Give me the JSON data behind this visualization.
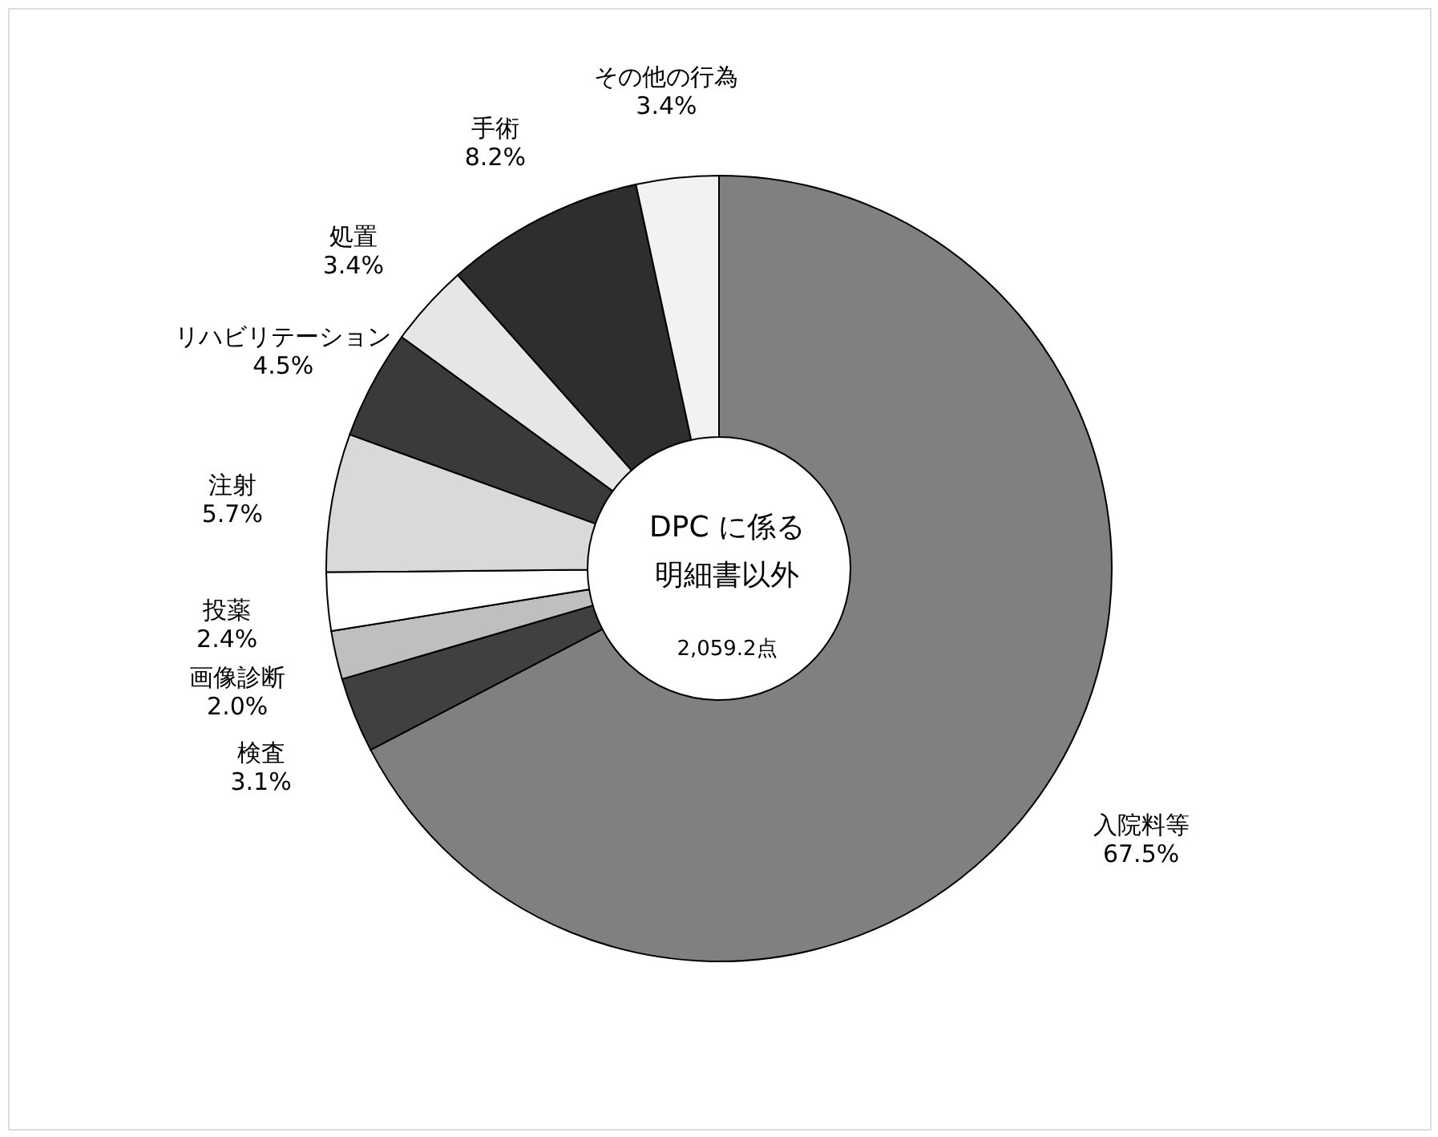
{
  "chart_data": {
    "type": "donut",
    "categories": [
      "入院料等",
      "検査",
      "画像診断",
      "投薬",
      "注射",
      "リハビリテーション",
      "処置",
      "手術",
      "その他の行為"
    ],
    "values": [
      67.5,
      3.1,
      2.0,
      2.4,
      5.7,
      4.5,
      3.4,
      8.2,
      3.4
    ],
    "value_labels": [
      "67.5%",
      "3.1%",
      "2.0%",
      "2.4%",
      "5.7%",
      "4.5%",
      "3.4%",
      "8.2%",
      "3.4%"
    ],
    "colors": [
      "#808080",
      "#404040",
      "#bfbfbf",
      "#ffffff",
      "#d9d9d9",
      "#3a3a3a",
      "#e6e6e6",
      "#2e2e2e",
      "#f2f2f2"
    ],
    "annotations": [
      "DPC に係る",
      "明細書以外",
      "2,059.2点"
    ],
    "legend": false
  }
}
